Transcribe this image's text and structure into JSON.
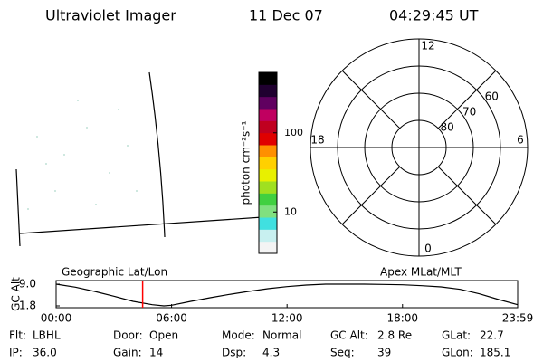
{
  "header": {
    "title": "Ultraviolet Imager",
    "date": "11 Dec 07",
    "time": "04:29:45 UT"
  },
  "image": {
    "label": "Geographic Lat/Lon"
  },
  "colorbar": {
    "label": "photon cm⁻²s⁻¹",
    "log": true,
    "lim": [
      3,
      580
    ],
    "ticks": [
      10,
      100
    ],
    "colors": [
      "#f4f4f4",
      "#c8f0f0",
      "#40e0e0",
      "#80e080",
      "#40d040",
      "#a0e020",
      "#e8f000",
      "#ffd000",
      "#ff9000",
      "#e00000",
      "#c00020",
      "#c00060",
      "#600060",
      "#200030",
      "#000000"
    ]
  },
  "polar": {
    "label": "Apex MLat/MLT",
    "rlim": [
      90,
      50
    ],
    "mlt": [
      12,
      6,
      0,
      18
    ],
    "rings": [
      80,
      70,
      60
    ]
  },
  "chart_data": {
    "type": "line",
    "ylabel": "GC Alt",
    "color": "#000000",
    "marker_color": "#ff0000",
    "x": [
      0,
      1,
      2,
      3,
      4,
      5,
      5.6,
      6,
      7,
      8,
      9,
      10,
      11,
      12,
      13,
      14,
      15,
      16,
      17,
      18,
      19,
      20,
      21,
      22,
      23,
      23.983
    ],
    "values": [
      9.0,
      8.0,
      6.6,
      5.0,
      3.3,
      2.2,
      1.8,
      2.0,
      3.3,
      4.5,
      5.6,
      6.6,
      7.5,
      8.2,
      8.7,
      9.0,
      9.0,
      9.0,
      8.9,
      8.8,
      8.5,
      8.1,
      7.3,
      5.8,
      3.9,
      2.2
    ],
    "marker_x": 4.496,
    "xlim": [
      0,
      23.983
    ],
    "ylim": [
      1.2,
      10.2
    ],
    "xticks": [
      {
        "value": 0,
        "label": "00:00"
      },
      {
        "value": 6,
        "label": "06:00"
      },
      {
        "value": 12,
        "label": "12:00"
      },
      {
        "value": 18,
        "label": "18:00"
      },
      {
        "value": 23.983,
        "label": "23:59"
      }
    ],
    "yticks": [
      {
        "value": 9.0,
        "label": "9.0"
      },
      {
        "value": 1.8,
        "label": "1.8"
      }
    ]
  },
  "info": [
    [
      {
        "label": "Flt:",
        "value": "LBHL"
      },
      {
        "label": "Door:",
        "value": "Open"
      },
      {
        "label": "Mode:",
        "value": "Normal"
      },
      {
        "label": "GC Alt:",
        "value": "2.8 Re"
      },
      {
        "label": "GLat:",
        "value": "22.7"
      }
    ],
    [
      {
        "label": "IP:",
        "value": "36.0"
      },
      {
        "label": "Gain:",
        "value": "14"
      },
      {
        "label": "Dsp:",
        "value": "4.3"
      },
      {
        "label": "Seq:",
        "value": "39"
      },
      {
        "label": "GLon:",
        "value": "185.1"
      }
    ]
  ]
}
